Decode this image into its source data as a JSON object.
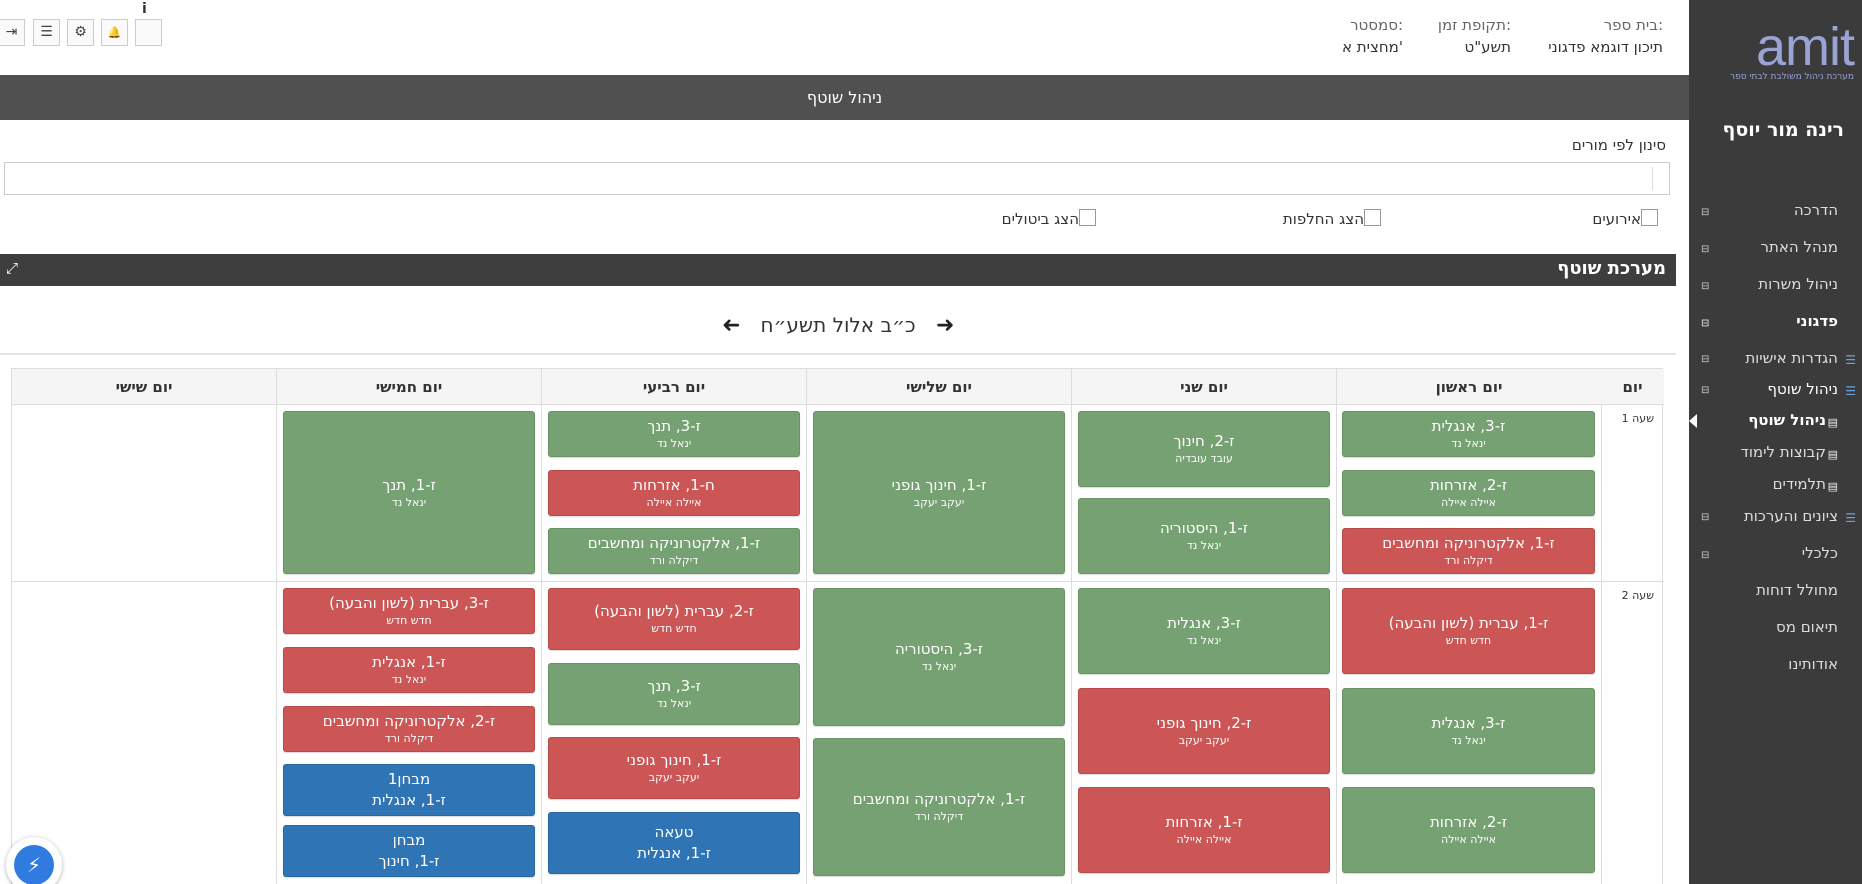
{
  "header": {
    "school_label": "בית ספר:",
    "school_value": "תיכון דוגמא פדגוני",
    "period_label": "תקופת זמן:",
    "period_value": "תשע\"ט",
    "semester_label": "סמסטר:",
    "semester_value": "מחצית א'",
    "info_glyph": "i"
  },
  "toolbar": {
    "exit_icon": "⇥",
    "menu_icon": "☰",
    "gear_icon": "⚙",
    "bell_icon": "🔔",
    "blank": ""
  },
  "page_title": "ניהול שוטף",
  "filter": {
    "label": "סינון לפי מורים",
    "value": ""
  },
  "checkboxes": {
    "events": "אירועים",
    "substitutions": "הצג החלפות",
    "cancellations": "הצג ביטולים"
  },
  "panel": {
    "title": "מערכת שוטף",
    "expand_icon": "⤢"
  },
  "date_nav": {
    "date": "כ״ב אלול תשע״ח",
    "prev_arrow": "➜",
    "next_arrow": "➜"
  },
  "table": {
    "headers": {
      "day": "יום",
      "sun": "יום ראשון",
      "mon": "יום שני",
      "tue": "יום שלישי",
      "wed": "יום רביעי",
      "thu": "יום חמישי",
      "fri": "יום שישי"
    },
    "hours": [
      "שעה 1",
      "שעה 2"
    ]
  },
  "cards": {
    "h1_sun_1": {
      "l1": "ז-3, אנגלית",
      "l2": "ינאל נד"
    },
    "h1_sun_2": {
      "l1": "ז-2, אזרחות",
      "l2": "איילה איילה"
    },
    "h1_sun_3": {
      "l1": "ז-1, אלקטרוניקה ומחשבים",
      "l2": "דיקלה ורד"
    },
    "h1_mon_1": {
      "l1": "ז-2, חינוך",
      "l2": "עובד עובדיה"
    },
    "h1_mon_2": {
      "l1": "ז-1, היסטוריה",
      "l2": "ינאל נד"
    },
    "h1_tue_1": {
      "l1": "ז-1, חינוך גופני",
      "l2": "יעקב יעקב"
    },
    "h1_wed_1": {
      "l1": "ז-3, תנך",
      "l2": "ינאל נד"
    },
    "h1_wed_2": {
      "l1": "ח-1, אזרחות",
      "l2": "איילה איילה"
    },
    "h1_wed_3": {
      "l1": "ז-1, אלקטרוניקה ומחשבים",
      "l2": "דיקלה ורד"
    },
    "h1_thu_1": {
      "l1": "ז-1, תנך",
      "l2": "ינאל נד"
    },
    "h2_sun_1": {
      "l1": "ז-1, עברית (לשון והבעה)",
      "l2": "חדש חדש"
    },
    "h2_sun_2": {
      "l1": "ז-3, אנגלית",
      "l2": "ינאל נד"
    },
    "h2_sun_3": {
      "l1": "ז-2, אזרחות",
      "l2": "איילה איילה"
    },
    "h2_mon_1": {
      "l1": "ז-3, אנגלית",
      "l2": "ינאל נד"
    },
    "h2_mon_2": {
      "l1": "ז-2, חינוך גופני",
      "l2": "יעקב יעקב"
    },
    "h2_mon_3": {
      "l1": "ז-1, אזרחות",
      "l2": "איילה איילה"
    },
    "h2_tue_1": {
      "l1": "ז-3, היסטוריה",
      "l2": "ינאל נד"
    },
    "h2_tue_2": {
      "l1": "ז-1, אלקטרוניקה ומחשבים",
      "l2": "דיקלה ורד"
    },
    "h2_wed_1": {
      "l1": "ז-2, עברית (לשון והבעה)",
      "l2": "חדש חדש"
    },
    "h2_wed_2": {
      "l1": "ז-3, תנך",
      "l2": "ינאל נד"
    },
    "h2_wed_3": {
      "l1": "ז-1, חינוך גופני",
      "l2": "יעקב יעקב"
    },
    "h2_wed_4": {
      "l1": "טעאה",
      "l2": "ז-1, אנגלית"
    },
    "h2_thu_1": {
      "l1": "ז-3, עברית (לשון והבעה)",
      "l2": "חדש חדש"
    },
    "h2_thu_2": {
      "l1": "ז-1, אנגלית",
      "l2": "ינאל נד"
    },
    "h2_thu_3": {
      "l1": "ז-2, אלקטרוניקה ומחשבים",
      "l2": "דיקלה ורד"
    },
    "h2_thu_4": {
      "l1": "מבחן1",
      "l2": "ז-1, אנגלית"
    },
    "h2_thu_5": {
      "l1": "מבחן",
      "l2": "ז-1, חינוך"
    }
  },
  "sidebar": {
    "logo_text": "amit",
    "logo_tagline": "מערכת ניהול משולבת לבתי ספר",
    "user_name": "רינה מור יוסף",
    "items": {
      "guide": "הדרכה",
      "admin": "מנהל האתר",
      "positions": "ניהול משרות",
      "pedagogy": "פדגוני",
      "personal": "הגדרות אישיות",
      "ongoing": "ניהול שוטף",
      "ongoing_sub": "ניהול שוטף",
      "groups": "קבוצות לימוד",
      "students": "תלמידים",
      "grades": "ציונים והערכות",
      "economic": "כלכלי",
      "reports": "מחולל דוחות",
      "tax": "תיאום מס",
      "about": "אודותינו"
    }
  },
  "colors": {
    "green": "#76a172",
    "red": "#cc5555",
    "blue": "#2f74b5",
    "sidebar": "#3b3b3b",
    "titlebar": "#505050"
  }
}
